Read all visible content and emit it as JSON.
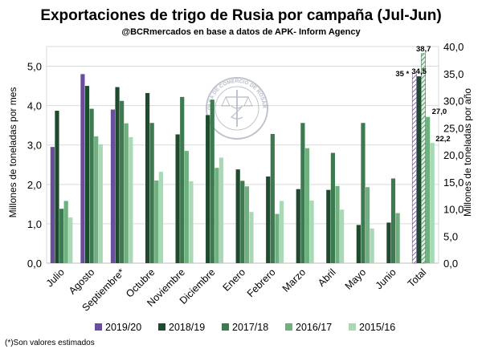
{
  "colors": {
    "2019/20": "#6b4e9b",
    "2018/19": "#1e4a2d",
    "2017/18": "#3e7a50",
    "2016/17": "#6fb07f",
    "2015/16": "#a9d8b5"
  },
  "chart_data": {
    "type": "bar",
    "title": "Exportaciones de trigo de Rusia por campaña (Jul-Jun)",
    "subtitle": "@BCRmercados en base a datos de APK- Inform Agency",
    "ylabel_left": "Millones de toneladas por mes",
    "ylabel_right": "Millones de toneladas por año",
    "ylim_left": [
      0,
      5.5
    ],
    "ylim_right": [
      0,
      40
    ],
    "yticks_left": [
      "0,0",
      "1,0",
      "2,0",
      "3,0",
      "4,0",
      "5,0"
    ],
    "yticks_right": [
      "0,0",
      "5,0",
      "10,0",
      "15,0",
      "20,0",
      "25,0",
      "30,0",
      "35,0",
      "40,0"
    ],
    "categories": [
      "Julio",
      "Agosto",
      "Septiembre*",
      "Octubre",
      "Noviembre",
      "Diciembre",
      "Enero",
      "Febrero",
      "Marzo",
      "Abril",
      "Mayo",
      "Junio"
    ],
    "series": [
      {
        "name": "2019/20",
        "values": [
          2.95,
          4.8,
          3.9,
          null,
          null,
          null,
          null,
          null,
          null,
          null,
          null,
          null
        ]
      },
      {
        "name": "2018/19",
        "values": [
          3.87,
          4.5,
          4.47,
          4.32,
          3.27,
          3.76,
          2.38,
          2.2,
          1.88,
          1.86,
          0.97,
          1.03
        ]
      },
      {
        "name": "2017/18",
        "values": [
          1.38,
          3.92,
          4.12,
          3.56,
          4.22,
          4.15,
          2.09,
          3.28,
          3.56,
          2.8,
          3.56,
          2.15
        ]
      },
      {
        "name": "2016/17",
        "values": [
          1.58,
          3.22,
          3.55,
          2.1,
          2.85,
          2.42,
          1.95,
          1.25,
          2.92,
          1.96,
          1.93,
          1.27
        ]
      },
      {
        "name": "2015/16",
        "values": [
          1.16,
          3.02,
          3.2,
          2.32,
          2.08,
          2.68,
          1.3,
          1.58,
          1.59,
          1.36,
          0.88,
          null
        ]
      }
    ],
    "total": {
      "category": "Total",
      "values": [
        35.0,
        34.5,
        38.7,
        27.0,
        22.2
      ],
      "labels": [
        "35 *",
        "34,5",
        "38,7",
        "27,0",
        "22,2"
      ]
    },
    "legend": [
      "2019/20",
      "2018/19",
      "2017/18",
      "2016/17",
      "2015/16"
    ],
    "legend_position": "bottom",
    "watermark": "BOLSA DE COMERCIO DE ROSARIO",
    "footnote": "(*)Son valores estimados"
  }
}
